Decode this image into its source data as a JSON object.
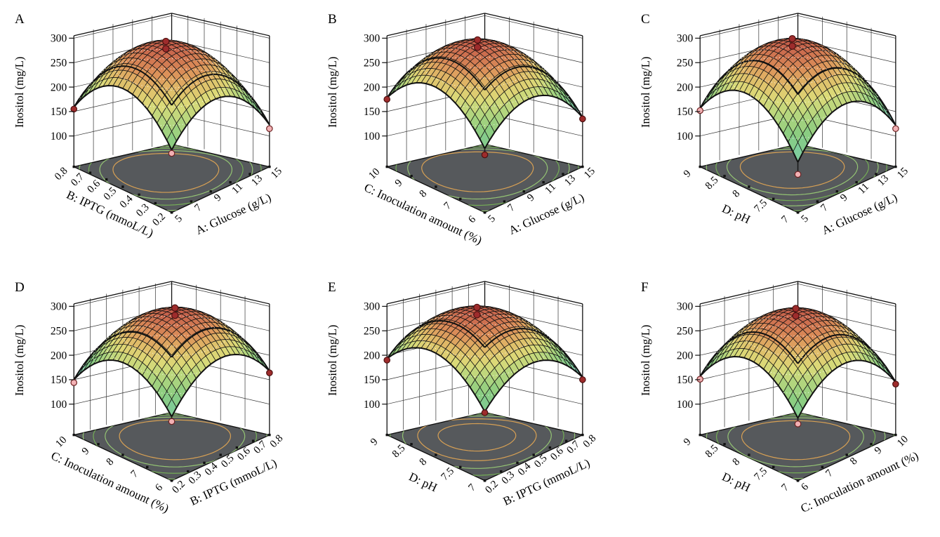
{
  "figure": {
    "background": "#ffffff",
    "rows": 2,
    "cols": 3,
    "panel_labels": [
      "A",
      "B",
      "C",
      "D",
      "E",
      "F"
    ]
  },
  "style": {
    "floor_color": "#56595c",
    "box_line_color": "#111111",
    "wall_grid_color": "#333333",
    "mesh_line_color": "#141414",
    "contour_orange": "#d7a054",
    "contour_green_dark": "#74ad56",
    "contour_green_light": "#93c373",
    "contour_cyan": "#74cfd4",
    "dot_dark_fill": "#9e2c2c",
    "dot_dark_stroke": "#4d1010",
    "dot_pink_fill": "#f2b1b4",
    "dot_pink_stroke": "#6e2323",
    "surface_colormap": [
      [
        0.0,
        "#76d0d2"
      ],
      [
        0.1,
        "#7bd2bb"
      ],
      [
        0.22,
        "#80cb92"
      ],
      [
        0.35,
        "#8ccd80"
      ],
      [
        0.5,
        "#b5d67e"
      ],
      [
        0.62,
        "#dcda78"
      ],
      [
        0.74,
        "#e0bb68"
      ],
      [
        0.85,
        "#dc9059"
      ],
      [
        1.0,
        "#c65f4a"
      ]
    ]
  },
  "chart_data": [
    {
      "type": "surface3d",
      "panel": "A",
      "zlabel": "Inositol (mg/L)",
      "z_ticks": [
        100,
        150,
        200,
        250,
        300
      ],
      "z_box_range": [
        37,
        305
      ],
      "left_axis": {
        "title": "B: IPTG (mmoL/L)",
        "ticks": [
          "0.2",
          "0.3",
          "0.4",
          "0.5",
          "0.6",
          "0.7",
          "0.8"
        ]
      },
      "right_axis": {
        "title": "A: Glucose (g/L)",
        "ticks": [
          "5",
          "7",
          "9",
          "11",
          "13",
          "15"
        ]
      },
      "surface_model": {
        "peak_z": 293,
        "front_corner_z": 165,
        "left_corner_z": 159,
        "right_corner_z": 123
      },
      "contour_levels": [
        250,
        225,
        200,
        175,
        150,
        125,
        100
      ],
      "design_points": [
        {
          "location": "apex",
          "z": 299,
          "style": "dark"
        },
        {
          "location": "apex",
          "z": 284,
          "style": "dark"
        },
        {
          "location": "left-corner",
          "z": 155,
          "style": "dark"
        },
        {
          "location": "right-corner",
          "z": 115,
          "style": "pink"
        },
        {
          "location": "front-corner",
          "z": 158,
          "style": "pink"
        }
      ]
    },
    {
      "type": "surface3d",
      "panel": "B",
      "zlabel": "Inositol (mg/L)",
      "z_ticks": [
        100,
        150,
        200,
        250,
        300
      ],
      "z_box_range": [
        37,
        305
      ],
      "left_axis": {
        "title": "C: Inoculation amount (%)",
        "ticks": [
          "6",
          "7",
          "8",
          "9",
          "10"
        ]
      },
      "right_axis": {
        "title": "A: Glucose (g/L)",
        "ticks": [
          "5",
          "7",
          "9",
          "11",
          "13",
          "15"
        ]
      },
      "surface_model": {
        "peak_z": 293,
        "front_corner_z": 168,
        "left_corner_z": 178,
        "right_corner_z": 138
      },
      "contour_levels": [
        250,
        225,
        200,
        175,
        150,
        125,
        100
      ],
      "design_points": [
        {
          "location": "apex",
          "z": 299,
          "style": "dark"
        },
        {
          "location": "apex",
          "z": 284,
          "style": "dark"
        },
        {
          "location": "left-corner",
          "z": 175,
          "style": "dark"
        },
        {
          "location": "right-corner",
          "z": 135,
          "style": "dark"
        },
        {
          "location": "front-corner",
          "z": 155,
          "style": "dark"
        }
      ]
    },
    {
      "type": "surface3d",
      "panel": "C",
      "zlabel": "Inositol (mg/L)",
      "z_ticks": [
        100,
        150,
        200,
        250,
        300
      ],
      "z_box_range": [
        37,
        305
      ],
      "left_axis": {
        "title": "D: pH",
        "ticks": [
          "7",
          "7.5",
          "8",
          "8.5",
          "9"
        ]
      },
      "right_axis": {
        "title": "A: Glucose (g/L)",
        "ticks": [
          "5",
          "7",
          "9",
          "11",
          "13",
          "15"
        ]
      },
      "surface_model": {
        "peak_z": 293,
        "front_corner_z": 140,
        "left_corner_z": 157,
        "right_corner_z": 122
      },
      "contour_levels": [
        250,
        225,
        200,
        175,
        150,
        125,
        100
      ],
      "design_points": [
        {
          "location": "apex",
          "z": 299,
          "style": "dark"
        },
        {
          "location": "apex",
          "z": 284,
          "style": "dark"
        },
        {
          "location": "left-corner",
          "z": 152,
          "style": "pink"
        },
        {
          "location": "right-corner",
          "z": 115,
          "style": "pink"
        },
        {
          "location": "front-corner",
          "z": 115,
          "style": "pink"
        }
      ]
    },
    {
      "type": "surface3d",
      "panel": "D",
      "zlabel": "Inositol (mg/L)",
      "z_ticks": [
        100,
        150,
        200,
        250,
        300
      ],
      "z_box_range": [
        37,
        305
      ],
      "left_axis": {
        "title": "C: Inoculation amount (%)",
        "ticks": [
          "6",
          "7",
          "8",
          "9",
          "10"
        ]
      },
      "right_axis": {
        "title": "B: IPTG (mmoL/L)",
        "ticks": [
          "0.2",
          "0.3",
          "0.4",
          "0.5",
          "0.6",
          "0.7",
          "0.8"
        ]
      },
      "surface_model": {
        "peak_z": 293,
        "front_corner_z": 168,
        "left_corner_z": 150,
        "right_corner_z": 168
      },
      "contour_levels": [
        250,
        225,
        200,
        175,
        150,
        125,
        100
      ],
      "design_points": [
        {
          "location": "apex",
          "z": 299,
          "style": "dark"
        },
        {
          "location": "apex",
          "z": 284,
          "style": "dark"
        },
        {
          "location": "left-corner",
          "z": 144,
          "style": "pink"
        },
        {
          "location": "right-corner",
          "z": 164,
          "style": "dark"
        },
        {
          "location": "front-corner",
          "z": 158,
          "style": "pink"
        }
      ]
    },
    {
      "type": "surface3d",
      "panel": "E",
      "zlabel": "Inositol (mg/L)",
      "z_ticks": [
        100,
        150,
        200,
        250,
        300
      ],
      "z_box_range": [
        37,
        305
      ],
      "left_axis": {
        "title": "D: pH",
        "ticks": [
          "7",
          "7.5",
          "8",
          "8.5",
          "9"
        ]
      },
      "right_axis": {
        "title": "B: IPTG (mmoL/L)",
        "ticks": [
          "0.2",
          "0.3",
          "0.4",
          "0.5",
          "0.6",
          "0.7",
          "0.8"
        ]
      },
      "surface_model": {
        "peak_z": 293,
        "front_corner_z": 178,
        "left_corner_z": 193,
        "right_corner_z": 155
      },
      "contour_levels": [
        275,
        250,
        225,
        200,
        175,
        150,
        125,
        100
      ],
      "design_points": [
        {
          "location": "apex",
          "z": 299,
          "style": "dark"
        },
        {
          "location": "apex",
          "z": 284,
          "style": "dark"
        },
        {
          "location": "left-corner",
          "z": 190,
          "style": "dark"
        },
        {
          "location": "right-corner",
          "z": 150,
          "style": "dark"
        },
        {
          "location": "front-corner",
          "z": 176,
          "style": "dark"
        }
      ]
    },
    {
      "type": "surface3d",
      "panel": "F",
      "zlabel": "Inositol (mg/L)",
      "z_ticks": [
        100,
        150,
        200,
        250,
        300
      ],
      "z_box_range": [
        37,
        305
      ],
      "left_axis": {
        "title": "D: pH",
        "ticks": [
          "7",
          "7.5",
          "8",
          "8.5",
          "9"
        ]
      },
      "right_axis": {
        "title": "C: Inoculation amount (%)",
        "ticks": [
          "6",
          "7",
          "8",
          "9",
          "10"
        ]
      },
      "surface_model": {
        "peak_z": 293,
        "front_corner_z": 165,
        "left_corner_z": 157,
        "right_corner_z": 145
      },
      "contour_levels": [
        250,
        225,
        200,
        175,
        150,
        125,
        100
      ],
      "design_points": [
        {
          "location": "apex",
          "z": 299,
          "style": "dark"
        },
        {
          "location": "apex",
          "z": 284,
          "style": "dark"
        },
        {
          "location": "left-corner",
          "z": 151,
          "style": "pink"
        },
        {
          "location": "right-corner",
          "z": 141,
          "style": "dark"
        },
        {
          "location": "front-corner",
          "z": 153,
          "style": "pink"
        }
      ]
    }
  ]
}
